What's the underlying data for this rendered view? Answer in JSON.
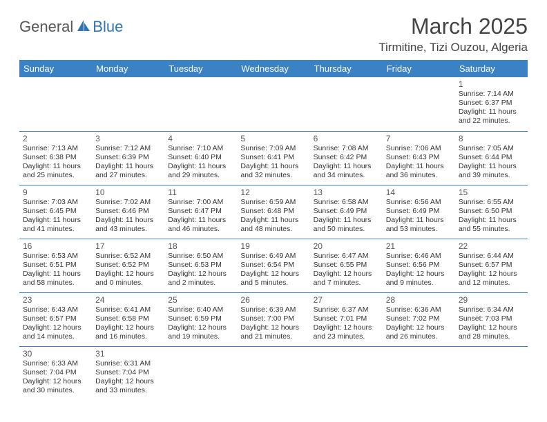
{
  "logo": {
    "text_general": "General",
    "text_blue": "Blue",
    "sail_color": "#2f75b5"
  },
  "title": "March 2025",
  "location": "Tirmitine, Tizi Ouzou, Algeria",
  "header_bg": "#3b82c4",
  "header_fg": "#ffffff",
  "border_color": "#3b82c4",
  "weekdays": [
    "Sunday",
    "Monday",
    "Tuesday",
    "Wednesday",
    "Thursday",
    "Friday",
    "Saturday"
  ],
  "weeks": [
    [
      null,
      null,
      null,
      null,
      null,
      null,
      {
        "n": "1",
        "sr": "7:14 AM",
        "ss": "6:37 PM",
        "dl": "11 hours and 22 minutes."
      }
    ],
    [
      {
        "n": "2",
        "sr": "7:13 AM",
        "ss": "6:38 PM",
        "dl": "11 hours and 25 minutes."
      },
      {
        "n": "3",
        "sr": "7:12 AM",
        "ss": "6:39 PM",
        "dl": "11 hours and 27 minutes."
      },
      {
        "n": "4",
        "sr": "7:10 AM",
        "ss": "6:40 PM",
        "dl": "11 hours and 29 minutes."
      },
      {
        "n": "5",
        "sr": "7:09 AM",
        "ss": "6:41 PM",
        "dl": "11 hours and 32 minutes."
      },
      {
        "n": "6",
        "sr": "7:08 AM",
        "ss": "6:42 PM",
        "dl": "11 hours and 34 minutes."
      },
      {
        "n": "7",
        "sr": "7:06 AM",
        "ss": "6:43 PM",
        "dl": "11 hours and 36 minutes."
      },
      {
        "n": "8",
        "sr": "7:05 AM",
        "ss": "6:44 PM",
        "dl": "11 hours and 39 minutes."
      }
    ],
    [
      {
        "n": "9",
        "sr": "7:03 AM",
        "ss": "6:45 PM",
        "dl": "11 hours and 41 minutes."
      },
      {
        "n": "10",
        "sr": "7:02 AM",
        "ss": "6:46 PM",
        "dl": "11 hours and 43 minutes."
      },
      {
        "n": "11",
        "sr": "7:00 AM",
        "ss": "6:47 PM",
        "dl": "11 hours and 46 minutes."
      },
      {
        "n": "12",
        "sr": "6:59 AM",
        "ss": "6:48 PM",
        "dl": "11 hours and 48 minutes."
      },
      {
        "n": "13",
        "sr": "6:58 AM",
        "ss": "6:49 PM",
        "dl": "11 hours and 50 minutes."
      },
      {
        "n": "14",
        "sr": "6:56 AM",
        "ss": "6:49 PM",
        "dl": "11 hours and 53 minutes."
      },
      {
        "n": "15",
        "sr": "6:55 AM",
        "ss": "6:50 PM",
        "dl": "11 hours and 55 minutes."
      }
    ],
    [
      {
        "n": "16",
        "sr": "6:53 AM",
        "ss": "6:51 PM",
        "dl": "11 hours and 58 minutes."
      },
      {
        "n": "17",
        "sr": "6:52 AM",
        "ss": "6:52 PM",
        "dl": "12 hours and 0 minutes."
      },
      {
        "n": "18",
        "sr": "6:50 AM",
        "ss": "6:53 PM",
        "dl": "12 hours and 2 minutes."
      },
      {
        "n": "19",
        "sr": "6:49 AM",
        "ss": "6:54 PM",
        "dl": "12 hours and 5 minutes."
      },
      {
        "n": "20",
        "sr": "6:47 AM",
        "ss": "6:55 PM",
        "dl": "12 hours and 7 minutes."
      },
      {
        "n": "21",
        "sr": "6:46 AM",
        "ss": "6:56 PM",
        "dl": "12 hours and 9 minutes."
      },
      {
        "n": "22",
        "sr": "6:44 AM",
        "ss": "6:57 PM",
        "dl": "12 hours and 12 minutes."
      }
    ],
    [
      {
        "n": "23",
        "sr": "6:43 AM",
        "ss": "6:57 PM",
        "dl": "12 hours and 14 minutes."
      },
      {
        "n": "24",
        "sr": "6:41 AM",
        "ss": "6:58 PM",
        "dl": "12 hours and 16 minutes."
      },
      {
        "n": "25",
        "sr": "6:40 AM",
        "ss": "6:59 PM",
        "dl": "12 hours and 19 minutes."
      },
      {
        "n": "26",
        "sr": "6:39 AM",
        "ss": "7:00 PM",
        "dl": "12 hours and 21 minutes."
      },
      {
        "n": "27",
        "sr": "6:37 AM",
        "ss": "7:01 PM",
        "dl": "12 hours and 23 minutes."
      },
      {
        "n": "28",
        "sr": "6:36 AM",
        "ss": "7:02 PM",
        "dl": "12 hours and 26 minutes."
      },
      {
        "n": "29",
        "sr": "6:34 AM",
        "ss": "7:03 PM",
        "dl": "12 hours and 28 minutes."
      }
    ],
    [
      {
        "n": "30",
        "sr": "6:33 AM",
        "ss": "7:04 PM",
        "dl": "12 hours and 30 minutes."
      },
      {
        "n": "31",
        "sr": "6:31 AM",
        "ss": "7:04 PM",
        "dl": "12 hours and 33 minutes."
      },
      null,
      null,
      null,
      null,
      null
    ]
  ],
  "labels": {
    "sunrise": "Sunrise:",
    "sunset": "Sunset:",
    "daylight": "Daylight:"
  }
}
